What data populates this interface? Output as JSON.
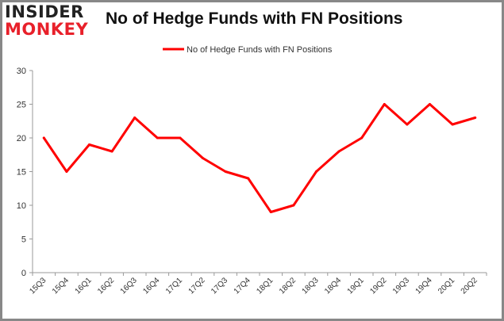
{
  "logo": {
    "line1": "INSIDER",
    "line2": "MONKEY"
  },
  "chart_data": {
    "type": "line",
    "title": "No of Hedge Funds with FN Positions",
    "xlabel": "",
    "ylabel": "",
    "categories": [
      "15Q3",
      "15Q4",
      "16Q1",
      "16Q2",
      "16Q3",
      "16Q4",
      "17Q1",
      "17Q2",
      "17Q3",
      "17Q4",
      "18Q1",
      "18Q2",
      "18Q3",
      "18Q4",
      "19Q1",
      "19Q2",
      "19Q3",
      "19Q4",
      "20Q1",
      "20Q2"
    ],
    "series": [
      {
        "name": "No of Hedge Funds with FN Positions",
        "color": "#ff0000",
        "values": [
          20,
          15,
          19,
          18,
          23,
          20,
          20,
          17,
          15,
          14,
          9,
          10,
          15,
          18,
          20,
          25,
          22,
          25,
          22,
          23
        ]
      }
    ],
    "ylim": [
      0,
      30
    ],
    "yticks": [
      0,
      5,
      10,
      15,
      20,
      25,
      30
    ],
    "grid": false,
    "legend_position": "top-center"
  }
}
